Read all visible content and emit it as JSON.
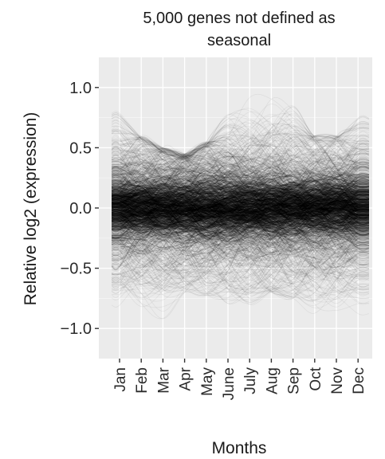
{
  "chart_data": {
    "type": "line",
    "title_lines": [
      "5,000 genes not defined as",
      "seasonal"
    ],
    "xlabel": "Months",
    "ylabel": "Relative log2 (expression)",
    "categories": [
      "Jan",
      "Feb",
      "Mar",
      "Apr",
      "May",
      "June",
      "July",
      "Aug",
      "Sep",
      "Oct",
      "Nov",
      "Dec"
    ],
    "yticks": [
      {
        "value": 1.0,
        "label": "1.0"
      },
      {
        "value": 0.5,
        "label": "0.5"
      },
      {
        "value": 0.0,
        "label": "0.0"
      },
      {
        "value": -0.5,
        "label": "−0.5"
      },
      {
        "value": -1.0,
        "label": "−1.0"
      }
    ],
    "ylim": [
      -1.25,
      1.25
    ],
    "grid": true,
    "series_count": 5000,
    "panel_background": "#ebebeb",
    "line_color": "#000000",
    "max_envelope": [
      0.8,
      0.6,
      0.5,
      0.45,
      0.55,
      0.8,
      1.0,
      1.15,
      0.85,
      0.6,
      0.6,
      0.75
    ],
    "min_envelope": [
      -0.9,
      -1.15,
      -0.95,
      -0.7,
      -0.75,
      -0.8,
      -0.8,
      -0.7,
      -0.75,
      -0.9,
      -0.85,
      -0.9
    ],
    "envelope_note_hidden": ""
  }
}
